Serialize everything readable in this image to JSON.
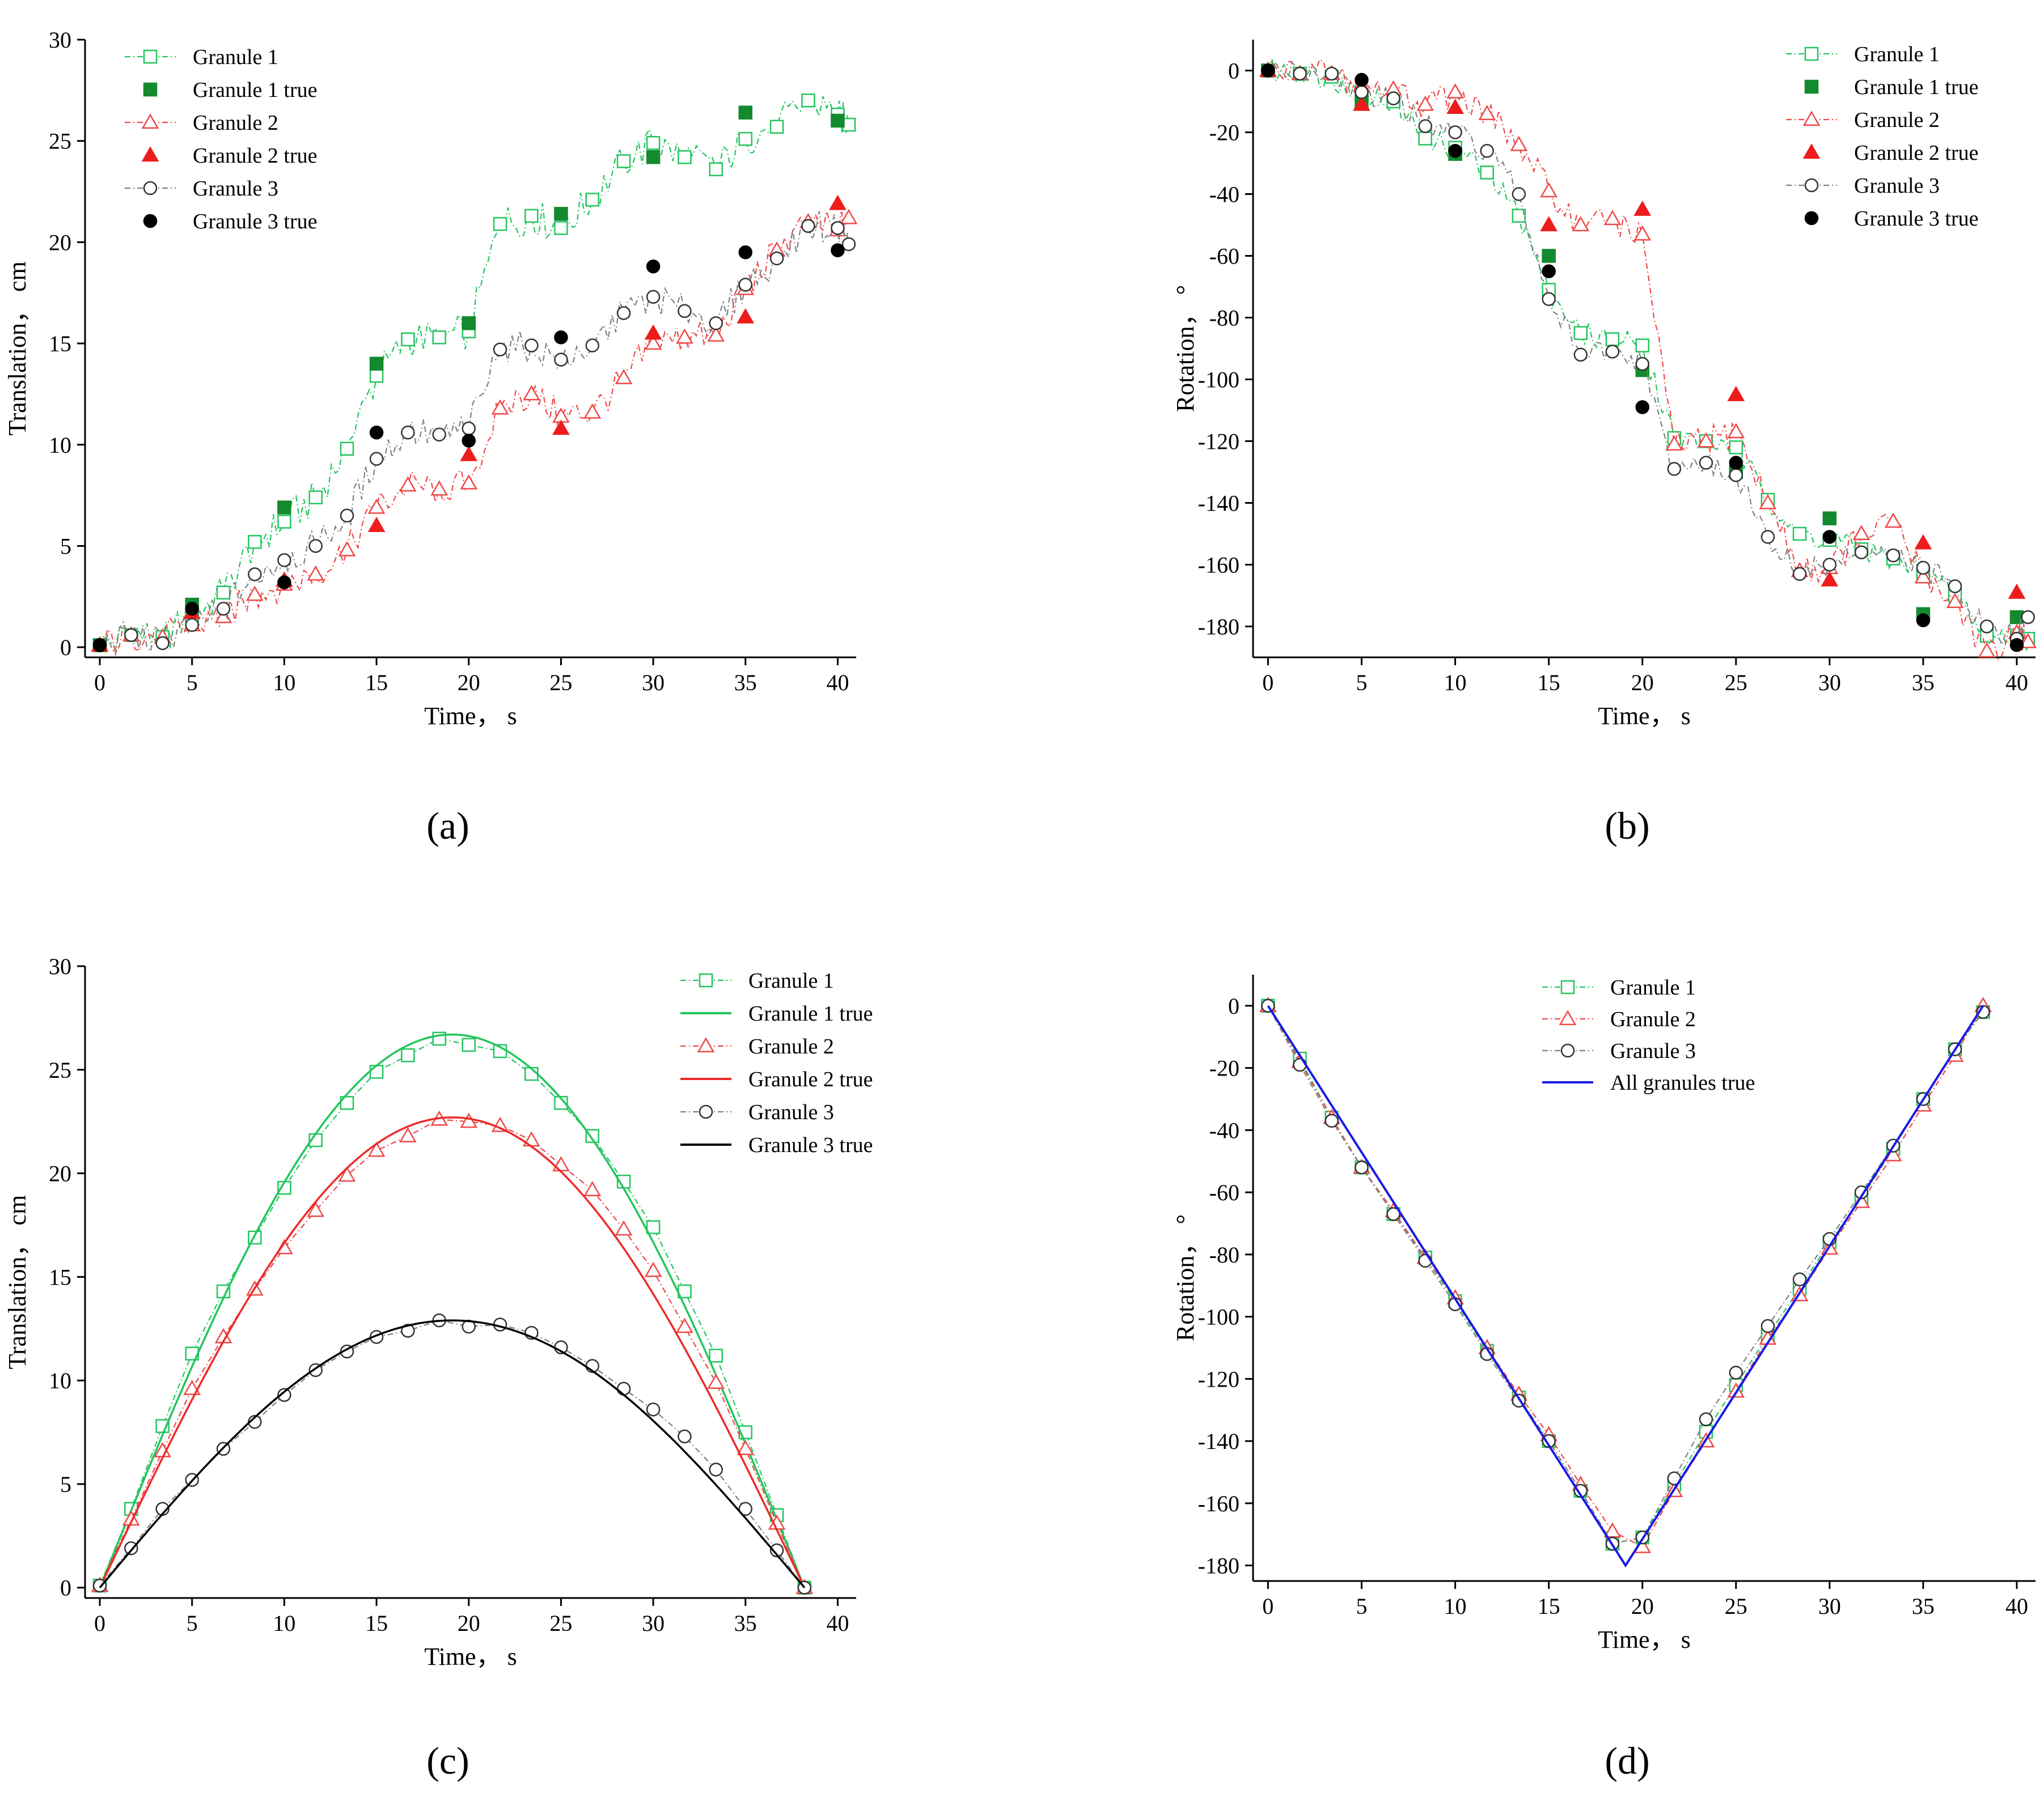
{
  "chart_data": [
    {
      "panel_label": "(a)",
      "type": "scatter",
      "xlabel": "Time， s",
      "ylabel": "Translation， cm",
      "xlim": [
        -0.8,
        41
      ],
      "ylim": [
        -0.5,
        30
      ],
      "xticks": [
        0,
        5,
        10,
        15,
        20,
        25,
        30,
        35,
        40
      ],
      "yticks": [
        0,
        5,
        10,
        15,
        20,
        25,
        30
      ],
      "legend_position": "top-left",
      "series": [
        {
          "name": "Granule 1",
          "color": "#22c55e",
          "style": "dashdot-markers",
          "marker": "square-open",
          "x": [
            0,
            1.7,
            3.4,
            5,
            6.7,
            8.4,
            10,
            11.7,
            13.4,
            15,
            16.7,
            18.4,
            20,
            21.7,
            23.4,
            25,
            26.7,
            28.4,
            30,
            31.7,
            33.4,
            35,
            36.7,
            38.4,
            40,
            40.6
          ],
          "y": [
            0.1,
            0.6,
            0.5,
            1.5,
            2.7,
            5.2,
            6.2,
            7.4,
            9.8,
            13.4,
            15.2,
            15.3,
            15.6,
            20.9,
            21.3,
            20.7,
            22.1,
            24,
            24.9,
            24.2,
            23.6,
            25.1,
            25.7,
            27,
            26.3,
            25.8
          ],
          "wiggle_amp": 0.9
        },
        {
          "name": "Granule 1 true",
          "color": "#138a2e",
          "style": "markers",
          "marker": "square-filled",
          "x": [
            0,
            5,
            10,
            15,
            20,
            25,
            30,
            35,
            40
          ],
          "y": [
            0.1,
            2.1,
            6.9,
            14,
            16,
            21.4,
            24.2,
            26.4,
            26
          ]
        },
        {
          "name": "Granule 2",
          "color": "#f04848",
          "style": "dashdot-markers",
          "marker": "triangle-open",
          "x": [
            0,
            1.7,
            3.4,
            5,
            6.7,
            8.4,
            10,
            11.7,
            13.4,
            15,
            16.7,
            18.4,
            20,
            21.7,
            23.4,
            25,
            26.7,
            28.4,
            30,
            31.7,
            33.4,
            35,
            36.7,
            38.4,
            40,
            40.6
          ],
          "y": [
            0.1,
            0.6,
            0.5,
            1.1,
            1.5,
            2.6,
            3.1,
            3.6,
            4.8,
            6.9,
            8,
            7.8,
            8.1,
            11.8,
            12.5,
            11.4,
            11.6,
            13.3,
            15,
            15.3,
            15.4,
            17.7,
            19.6,
            21,
            20.6,
            21.2
          ],
          "wiggle_amp": 0.8
        },
        {
          "name": "Granule 2 true",
          "color": "#ee1c1c",
          "style": "markers",
          "marker": "triangle-filled",
          "x": [
            0,
            5,
            10,
            15,
            20,
            25,
            30,
            35,
            40
          ],
          "y": [
            0.1,
            1.7,
            3.3,
            6,
            9.5,
            10.8,
            15.5,
            16.3,
            21.9
          ]
        },
        {
          "name": "Granule 3",
          "color": "#808080",
          "style": "dashdot-markers",
          "marker": "circle-open",
          "x": [
            0,
            1.7,
            3.4,
            5,
            6.7,
            8.4,
            10,
            11.7,
            13.4,
            15,
            16.7,
            18.4,
            20,
            21.7,
            23.4,
            25,
            26.7,
            28.4,
            30,
            31.7,
            33.4,
            35,
            36.7,
            38.4,
            40,
            40.6
          ],
          "y": [
            0.1,
            0.6,
            0.2,
            1.1,
            1.9,
            3.6,
            4.3,
            5,
            6.5,
            9.3,
            10.6,
            10.5,
            10.8,
            14.7,
            14.9,
            14.2,
            14.9,
            16.5,
            17.3,
            16.6,
            16,
            17.9,
            19.2,
            20.8,
            20.7,
            19.9
          ],
          "wiggle_amp": 0.8
        },
        {
          "name": "Granule 3 true",
          "color": "#000000",
          "style": "markers",
          "marker": "circle-filled",
          "x": [
            0,
            5,
            10,
            15,
            20,
            25,
            30,
            35,
            40
          ],
          "y": [
            0.1,
            1.9,
            3.2,
            10.6,
            10.2,
            15.3,
            18.8,
            19.5,
            19.6
          ]
        }
      ]
    },
    {
      "panel_label": "(b)",
      "type": "scatter",
      "xlabel": "Time， s",
      "ylabel": "Rotation， °",
      "xlim": [
        -0.8,
        41
      ],
      "ylim": [
        -190,
        10
      ],
      "xticks": [
        0,
        5,
        10,
        15,
        20,
        25,
        30,
        35,
        40
      ],
      "yticks": [
        0,
        -20,
        -40,
        -60,
        -80,
        -100,
        -120,
        -140,
        -160,
        -180
      ],
      "legend_position": "top-right",
      "series": [
        {
          "name": "Granule 1",
          "color": "#22c55e",
          "style": "dashdot-markers",
          "marker": "square-open",
          "x": [
            0,
            1.7,
            3.4,
            5,
            6.7,
            8.4,
            10,
            11.7,
            13.4,
            15,
            16.7,
            18.4,
            20,
            21.7,
            23.4,
            25,
            26.7,
            28.4,
            30,
            31.7,
            33.4,
            35,
            36.7,
            38.4,
            40,
            40.6
          ],
          "y": [
            0,
            -1,
            -2,
            -8,
            -10,
            -22,
            -25,
            -33,
            -47,
            -71,
            -85,
            -87,
            -89,
            -119,
            -120,
            -122,
            -139,
            -150,
            -152,
            -155,
            -158,
            -163,
            -170,
            -183,
            -183,
            -184
          ],
          "wiggle_amp": 4
        },
        {
          "name": "Granule 1 true",
          "color": "#138a2e",
          "style": "markers",
          "marker": "square-filled",
          "x": [
            0,
            5,
            10,
            15,
            20,
            25,
            30,
            35,
            40
          ],
          "y": [
            0,
            -10,
            -27,
            -60,
            -97,
            -130,
            -145,
            -176,
            -177
          ]
        },
        {
          "name": "Granule 2",
          "color": "#f04848",
          "style": "dashdot-markers",
          "marker": "triangle-open",
          "x": [
            0,
            1.7,
            3.4,
            5,
            6.7,
            8.4,
            10,
            11.7,
            13.4,
            15,
            16.7,
            18.4,
            20,
            21.7,
            23.4,
            25,
            26.7,
            28.4,
            30,
            31.7,
            33.4,
            35,
            36.7,
            38.4,
            40,
            40.6
          ],
          "y": [
            0,
            -1,
            -1,
            -5,
            -6,
            -11,
            -7,
            -14,
            -24,
            -39,
            -50,
            -48,
            -53,
            -121,
            -120,
            -117,
            -140,
            -162,
            -161,
            -150,
            -146,
            -164,
            -172,
            -188,
            -182,
            -185
          ],
          "wiggle_amp": 5
        },
        {
          "name": "Granule 2 true",
          "color": "#ee1c1c",
          "style": "markers",
          "marker": "triangle-filled",
          "x": [
            0,
            5,
            10,
            15,
            20,
            25,
            30,
            35,
            40
          ],
          "y": [
            0,
            -11,
            -12,
            -50,
            -45,
            -105,
            -165,
            -153,
            -169
          ]
        },
        {
          "name": "Granule 3",
          "color": "#808080",
          "style": "dashdot-markers",
          "marker": "circle-open",
          "x": [
            0,
            1.7,
            3.4,
            5,
            6.7,
            8.4,
            10,
            11.7,
            13.4,
            15,
            16.7,
            18.4,
            20,
            21.7,
            23.4,
            25,
            26.7,
            28.4,
            30,
            31.7,
            33.4,
            35,
            36.7,
            38.4,
            40,
            40.6
          ],
          "y": [
            0,
            -1,
            -1,
            -7,
            -9,
            -18,
            -20,
            -26,
            -40,
            -74,
            -92,
            -91,
            -95,
            -129,
            -127,
            -131,
            -151,
            -163,
            -160,
            -156,
            -157,
            -161,
            -167,
            -180,
            -184,
            -177
          ],
          "wiggle_amp": 4
        },
        {
          "name": "Granule 3 true",
          "color": "#000000",
          "style": "markers",
          "marker": "circle-filled",
          "x": [
            0,
            5,
            10,
            15,
            20,
            25,
            30,
            35,
            40
          ],
          "y": [
            0,
            -3,
            -26,
            -65,
            -109,
            -127,
            -151,
            -178,
            -186
          ]
        }
      ]
    },
    {
      "panel_label": "(c)",
      "type": "line",
      "xlabel": "Time， s",
      "ylabel": "Translation， cm",
      "xlim": [
        -0.8,
        41
      ],
      "ylim": [
        -0.5,
        30
      ],
      "xticks": [
        0,
        5,
        10,
        15,
        20,
        25,
        30,
        35,
        40
      ],
      "yticks": [
        0,
        5,
        10,
        15,
        20,
        25,
        30
      ],
      "legend_position": "top-right",
      "series": [
        {
          "name": "Granule 1",
          "color": "#22c55e",
          "style": "dashdot-markers",
          "marker": "square-open",
          "x": [
            0,
            1.7,
            3.4,
            5,
            6.7,
            8.4,
            10,
            11.7,
            13.4,
            15,
            16.7,
            18.4,
            20,
            21.7,
            23.4,
            25,
            26.7,
            28.4,
            30,
            31.7,
            33.4,
            35,
            36.7,
            38.2
          ],
          "y": [
            0.1,
            3.8,
            7.8,
            11.3,
            14.3,
            16.9,
            19.3,
            21.6,
            23.4,
            24.9,
            25.7,
            26.5,
            26.2,
            25.9,
            24.8,
            23.4,
            21.8,
            19.6,
            17.4,
            14.3,
            11.2,
            7.5,
            3.5,
            0
          ]
        },
        {
          "name": "Granule 1 true",
          "color": "#22c55e",
          "style": "curve",
          "peak": 26.7,
          "peak_t": 19.1,
          "t_end": 38.2
        },
        {
          "name": "Granule 2",
          "color": "#f04848",
          "style": "dashdot-markers",
          "marker": "triangle-open",
          "x": [
            0,
            1.7,
            3.4,
            5,
            6.7,
            8.4,
            10,
            11.7,
            13.4,
            15,
            16.7,
            18.4,
            20,
            21.7,
            23.4,
            25,
            26.7,
            28.4,
            30,
            31.7,
            33.4,
            35,
            36.7,
            38.2
          ],
          "y": [
            0.1,
            3.3,
            6.6,
            9.6,
            12.1,
            14.4,
            16.4,
            18.2,
            19.9,
            21.1,
            21.8,
            22.6,
            22.5,
            22.3,
            21.6,
            20.4,
            19.2,
            17.3,
            15.3,
            12.6,
            9.9,
            6.7,
            3.1,
            0
          ]
        },
        {
          "name": "Granule 2 true",
          "color": "#ee2a2a",
          "style": "curve",
          "peak": 22.7,
          "peak_t": 19.1,
          "t_end": 38.2
        },
        {
          "name": "Granule 3",
          "color": "#808080",
          "style": "dashdot-markers",
          "marker": "circle-open",
          "x": [
            0,
            1.7,
            3.4,
            5,
            6.7,
            8.4,
            10,
            11.7,
            13.4,
            15,
            16.7,
            18.4,
            20,
            21.7,
            23.4,
            25,
            26.7,
            28.4,
            30,
            31.7,
            33.4,
            35,
            36.7,
            38.2
          ],
          "y": [
            0.1,
            1.9,
            3.8,
            5.2,
            6.7,
            8,
            9.3,
            10.5,
            11.4,
            12.1,
            12.4,
            12.9,
            12.6,
            12.7,
            12.3,
            11.6,
            10.7,
            9.6,
            8.6,
            7.3,
            5.7,
            3.8,
            1.8,
            0
          ]
        },
        {
          "name": "Granule 3 true",
          "color": "#000000",
          "style": "curve",
          "peak": 12.9,
          "peak_t": 19.1,
          "t_end": 38.2
        }
      ]
    },
    {
      "panel_label": "(d)",
      "type": "line",
      "xlabel": "Time， s",
      "ylabel": "Rotation， °",
      "xlim": [
        -0.8,
        41
      ],
      "ylim": [
        -185,
        10
      ],
      "xticks": [
        0,
        5,
        10,
        15,
        20,
        25,
        30,
        35,
        40
      ],
      "yticks": [
        0,
        -20,
        -40,
        -60,
        -80,
        -100,
        -120,
        -140,
        -160,
        -180
      ],
      "legend_position": "top-center",
      "series": [
        {
          "name": "Granule 1",
          "color": "#22c55e",
          "style": "dashdot-markers",
          "marker": "square-open",
          "x": [
            0,
            1.7,
            3.4,
            5,
            6.7,
            8.4,
            10,
            11.7,
            13.4,
            15,
            16.7,
            18.4,
            20,
            21.7,
            23.4,
            25,
            26.7,
            28.4,
            30,
            31.7,
            33.4,
            35,
            36.7,
            38.2
          ],
          "y": [
            0,
            -17,
            -36,
            -52,
            -67,
            -81,
            -95,
            -111,
            -126,
            -140,
            -156,
            -173,
            -171,
            -154,
            -137,
            -122,
            -106,
            -91,
            -76,
            -62,
            -46,
            -30,
            -14,
            -2
          ]
        },
        {
          "name": "Granule 2",
          "color": "#f04848",
          "style": "dashdot-markers",
          "marker": "triangle-open",
          "x": [
            0,
            1.7,
            3.4,
            5,
            6.7,
            8.4,
            10,
            11.7,
            13.4,
            15,
            16.7,
            18.4,
            20,
            21.7,
            23.4,
            25,
            26.7,
            28.4,
            30,
            31.7,
            33.4,
            35,
            36.7,
            38.2
          ],
          "y": [
            0,
            -18,
            -36,
            -52,
            -66,
            -81,
            -94,
            -110,
            -125,
            -138,
            -154,
            -169,
            -174,
            -156,
            -140,
            -124,
            -107,
            -93,
            -78,
            -63,
            -48,
            -32,
            -16,
            0
          ]
        },
        {
          "name": "Granule 3",
          "color": "#808080",
          "style": "dashdot-markers",
          "marker": "circle-open",
          "x": [
            0,
            1.7,
            3.4,
            5,
            6.7,
            8.4,
            10,
            11.7,
            13.4,
            15,
            16.7,
            18.4,
            20,
            21.7,
            23.4,
            25,
            26.7,
            28.4,
            30,
            31.7,
            33.4,
            35,
            36.7,
            38.2
          ],
          "y": [
            0,
            -19,
            -37,
            -52,
            -67,
            -82,
            -96,
            -112,
            -127,
            -140,
            -156,
            -173,
            -171,
            -152,
            -133,
            -118,
            -103,
            -88,
            -75,
            -60,
            -45,
            -30,
            -14,
            -2
          ]
        },
        {
          "name": "All granules true",
          "color": "#1a1ae6",
          "style": "solid",
          "x": [
            0,
            19.1,
            38.2
          ],
          "y": [
            0,
            -180,
            0
          ]
        }
      ]
    }
  ]
}
